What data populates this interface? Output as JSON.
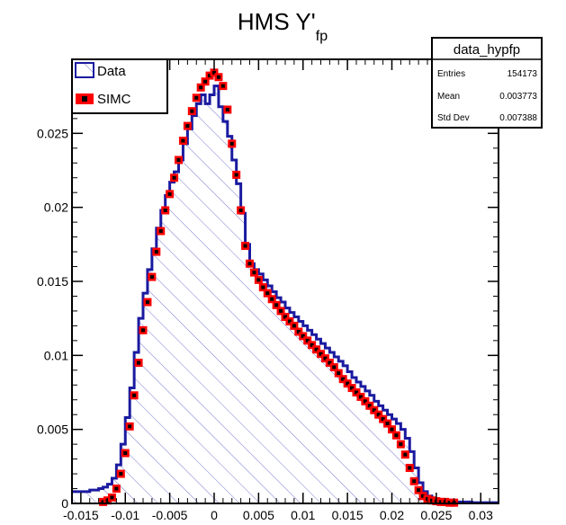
{
  "chart_data": {
    "type": "histogram",
    "title": "HMS Y'",
    "title_subscript": "fp",
    "xlabel": "",
    "ylabel": "",
    "xlim": [
      -0.016,
      0.032
    ],
    "ylim": [
      0,
      0.03
    ],
    "x_ticks": [
      "-0.015",
      "-0.01",
      "-0.005",
      "0",
      "0.005",
      "0.01",
      "0.015",
      "0.02",
      "0.025",
      "0.03"
    ],
    "x_tick_values": [
      -0.015,
      -0.01,
      -0.005,
      0,
      0.005,
      0.01,
      0.015,
      0.02,
      0.025,
      0.03
    ],
    "y_ticks": [
      "0",
      "0.005",
      "0.01",
      "0.015",
      "0.02",
      "0.025"
    ],
    "y_tick_values": [
      0,
      0.005,
      0.01,
      0.015,
      0.02,
      0.025
    ],
    "legend": {
      "placement": "top-left",
      "entries": [
        "Data",
        "SIMC"
      ]
    },
    "stats_box": {
      "name": "data_hypfp",
      "rows": [
        {
          "label": "Entries",
          "value": "154173"
        },
        {
          "label": "Mean",
          "value": "0.003773"
        },
        {
          "label": "Std Dev",
          "value": "0.007388"
        }
      ]
    },
    "series": [
      {
        "name": "Data",
        "style": "step-filled-hatched",
        "color": "#1a1aa0",
        "x": [
          -0.016,
          -0.015,
          -0.014,
          -0.013,
          -0.0125,
          -0.012,
          -0.0115,
          -0.011,
          -0.0105,
          -0.01,
          -0.0095,
          -0.009,
          -0.0085,
          -0.008,
          -0.0075,
          -0.007,
          -0.0065,
          -0.006,
          -0.0055,
          -0.005,
          -0.0045,
          -0.004,
          -0.0035,
          -0.003,
          -0.0025,
          -0.002,
          -0.0015,
          -0.001,
          -0.0005,
          0.0,
          0.0005,
          0.001,
          0.0015,
          0.002,
          0.0025,
          0.003,
          0.0035,
          0.004,
          0.0045,
          0.005,
          0.0055,
          0.006,
          0.0065,
          0.007,
          0.0075,
          0.008,
          0.0085,
          0.009,
          0.0095,
          0.01,
          0.0105,
          0.011,
          0.0115,
          0.012,
          0.0125,
          0.013,
          0.0135,
          0.014,
          0.0145,
          0.015,
          0.0155,
          0.016,
          0.0165,
          0.017,
          0.0175,
          0.018,
          0.0185,
          0.019,
          0.0195,
          0.02,
          0.0205,
          0.021,
          0.0215,
          0.022,
          0.0225,
          0.023,
          0.0235,
          0.024,
          0.0245,
          0.025,
          0.0255,
          0.026,
          0.027,
          0.028,
          0.029,
          0.03,
          0.031
        ],
        "y": [
          0.0008,
          0.0008,
          0.0009,
          0.001,
          0.0011,
          0.0013,
          0.0017,
          0.0026,
          0.004,
          0.0058,
          0.0078,
          0.0102,
          0.0125,
          0.0142,
          0.0158,
          0.0172,
          0.0186,
          0.0198,
          0.0208,
          0.0217,
          0.0224,
          0.0232,
          0.0243,
          0.0253,
          0.0262,
          0.027,
          0.0276,
          0.027,
          0.0276,
          0.0282,
          0.0268,
          0.0258,
          0.0248,
          0.0232,
          0.0216,
          0.0196,
          0.0175,
          0.0162,
          0.0158,
          0.0155,
          0.0151,
          0.0147,
          0.0143,
          0.0139,
          0.0136,
          0.0132,
          0.0129,
          0.0126,
          0.0123,
          0.012,
          0.0117,
          0.0114,
          0.0111,
          0.0108,
          0.0105,
          0.0102,
          0.0099,
          0.0096,
          0.0093,
          0.0089,
          0.0085,
          0.0082,
          0.0079,
          0.0076,
          0.0073,
          0.0069,
          0.0066,
          0.0063,
          0.006,
          0.0057,
          0.0054,
          0.005,
          0.0044,
          0.0035,
          0.0024,
          0.0014,
          0.0008,
          0.0005,
          0.0003,
          0.0002,
          0.0002,
          0.0001,
          0.0001,
          0.0001,
          5e-05,
          5e-05,
          5e-05
        ]
      },
      {
        "name": "SIMC",
        "style": "markers",
        "color": "#ff0000",
        "x": [
          -0.0125,
          -0.012,
          -0.0115,
          -0.011,
          -0.0105,
          -0.01,
          -0.0095,
          -0.009,
          -0.0085,
          -0.008,
          -0.0075,
          -0.007,
          -0.0065,
          -0.006,
          -0.0055,
          -0.005,
          -0.0045,
          -0.004,
          -0.0035,
          -0.003,
          -0.0025,
          -0.002,
          -0.0015,
          -0.001,
          -0.0005,
          0.0,
          0.0005,
          0.001,
          0.0015,
          0.002,
          0.0025,
          0.003,
          0.0035,
          0.004,
          0.0045,
          0.005,
          0.0055,
          0.006,
          0.0065,
          0.007,
          0.0075,
          0.008,
          0.0085,
          0.009,
          0.0095,
          0.01,
          0.0105,
          0.011,
          0.0115,
          0.012,
          0.0125,
          0.013,
          0.0135,
          0.014,
          0.0145,
          0.015,
          0.0155,
          0.016,
          0.0165,
          0.017,
          0.0175,
          0.018,
          0.0185,
          0.019,
          0.0195,
          0.02,
          0.0205,
          0.021,
          0.0215,
          0.022,
          0.0225,
          0.023,
          0.0235,
          0.024,
          0.0245,
          0.025,
          0.0255,
          0.026,
          0.0265,
          0.027
        ],
        "y": [
          0.0001,
          0.0002,
          0.0004,
          0.001,
          0.002,
          0.0034,
          0.0052,
          0.0073,
          0.0095,
          0.0117,
          0.0136,
          0.0153,
          0.017,
          0.0184,
          0.0198,
          0.0209,
          0.022,
          0.0232,
          0.0245,
          0.0255,
          0.0265,
          0.0274,
          0.0281,
          0.0285,
          0.0289,
          0.0291,
          0.0288,
          0.0282,
          0.0266,
          0.0243,
          0.0222,
          0.0198,
          0.0174,
          0.0162,
          0.0156,
          0.0151,
          0.0146,
          0.0142,
          0.0138,
          0.0134,
          0.013,
          0.0126,
          0.0123,
          0.012,
          0.0116,
          0.0113,
          0.011,
          0.0107,
          0.0104,
          0.0101,
          0.0098,
          0.0095,
          0.0092,
          0.0088,
          0.0084,
          0.0081,
          0.0078,
          0.0075,
          0.0072,
          0.0069,
          0.0066,
          0.0063,
          0.006,
          0.0057,
          0.0054,
          0.005,
          0.0046,
          0.004,
          0.0033,
          0.0024,
          0.0015,
          0.0009,
          0.0005,
          0.0003,
          0.0002,
          0.00015,
          0.0001,
          0.0001,
          5e-05,
          5e-05
        ]
      }
    ]
  }
}
